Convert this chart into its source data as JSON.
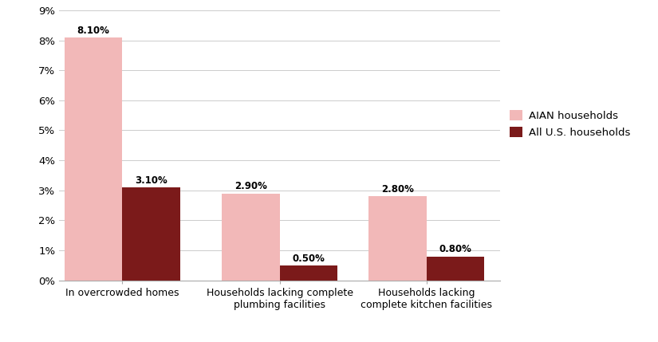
{
  "categories": [
    "In overcrowded homes",
    "Households lacking complete\nplumbing facilities",
    "Households lacking\ncomplete kitchen facilities"
  ],
  "aian_values": [
    8.1,
    2.9,
    2.8
  ],
  "us_values": [
    3.1,
    0.5,
    0.8
  ],
  "aian_labels": [
    "8.10%",
    "2.90%",
    "2.80%"
  ],
  "us_labels": [
    "3.10%",
    "0.50%",
    "0.80%"
  ],
  "aian_color": "#f2b8b8",
  "us_color": "#7b1a1a",
  "legend_aian": "AIAN households",
  "legend_us": "All U.S. households",
  "ylim": [
    0,
    9
  ],
  "yticks": [
    0,
    1,
    2,
    3,
    4,
    5,
    6,
    7,
    8,
    9
  ],
  "ytick_labels": [
    "0%",
    "1%",
    "2%",
    "3%",
    "4%",
    "5%",
    "6%",
    "7%",
    "8%",
    "9%"
  ],
  "bar_width": 0.55,
  "group_positions": [
    0.6,
    2.1,
    3.5
  ],
  "figsize": [
    8.25,
    4.29
  ],
  "dpi": 100
}
